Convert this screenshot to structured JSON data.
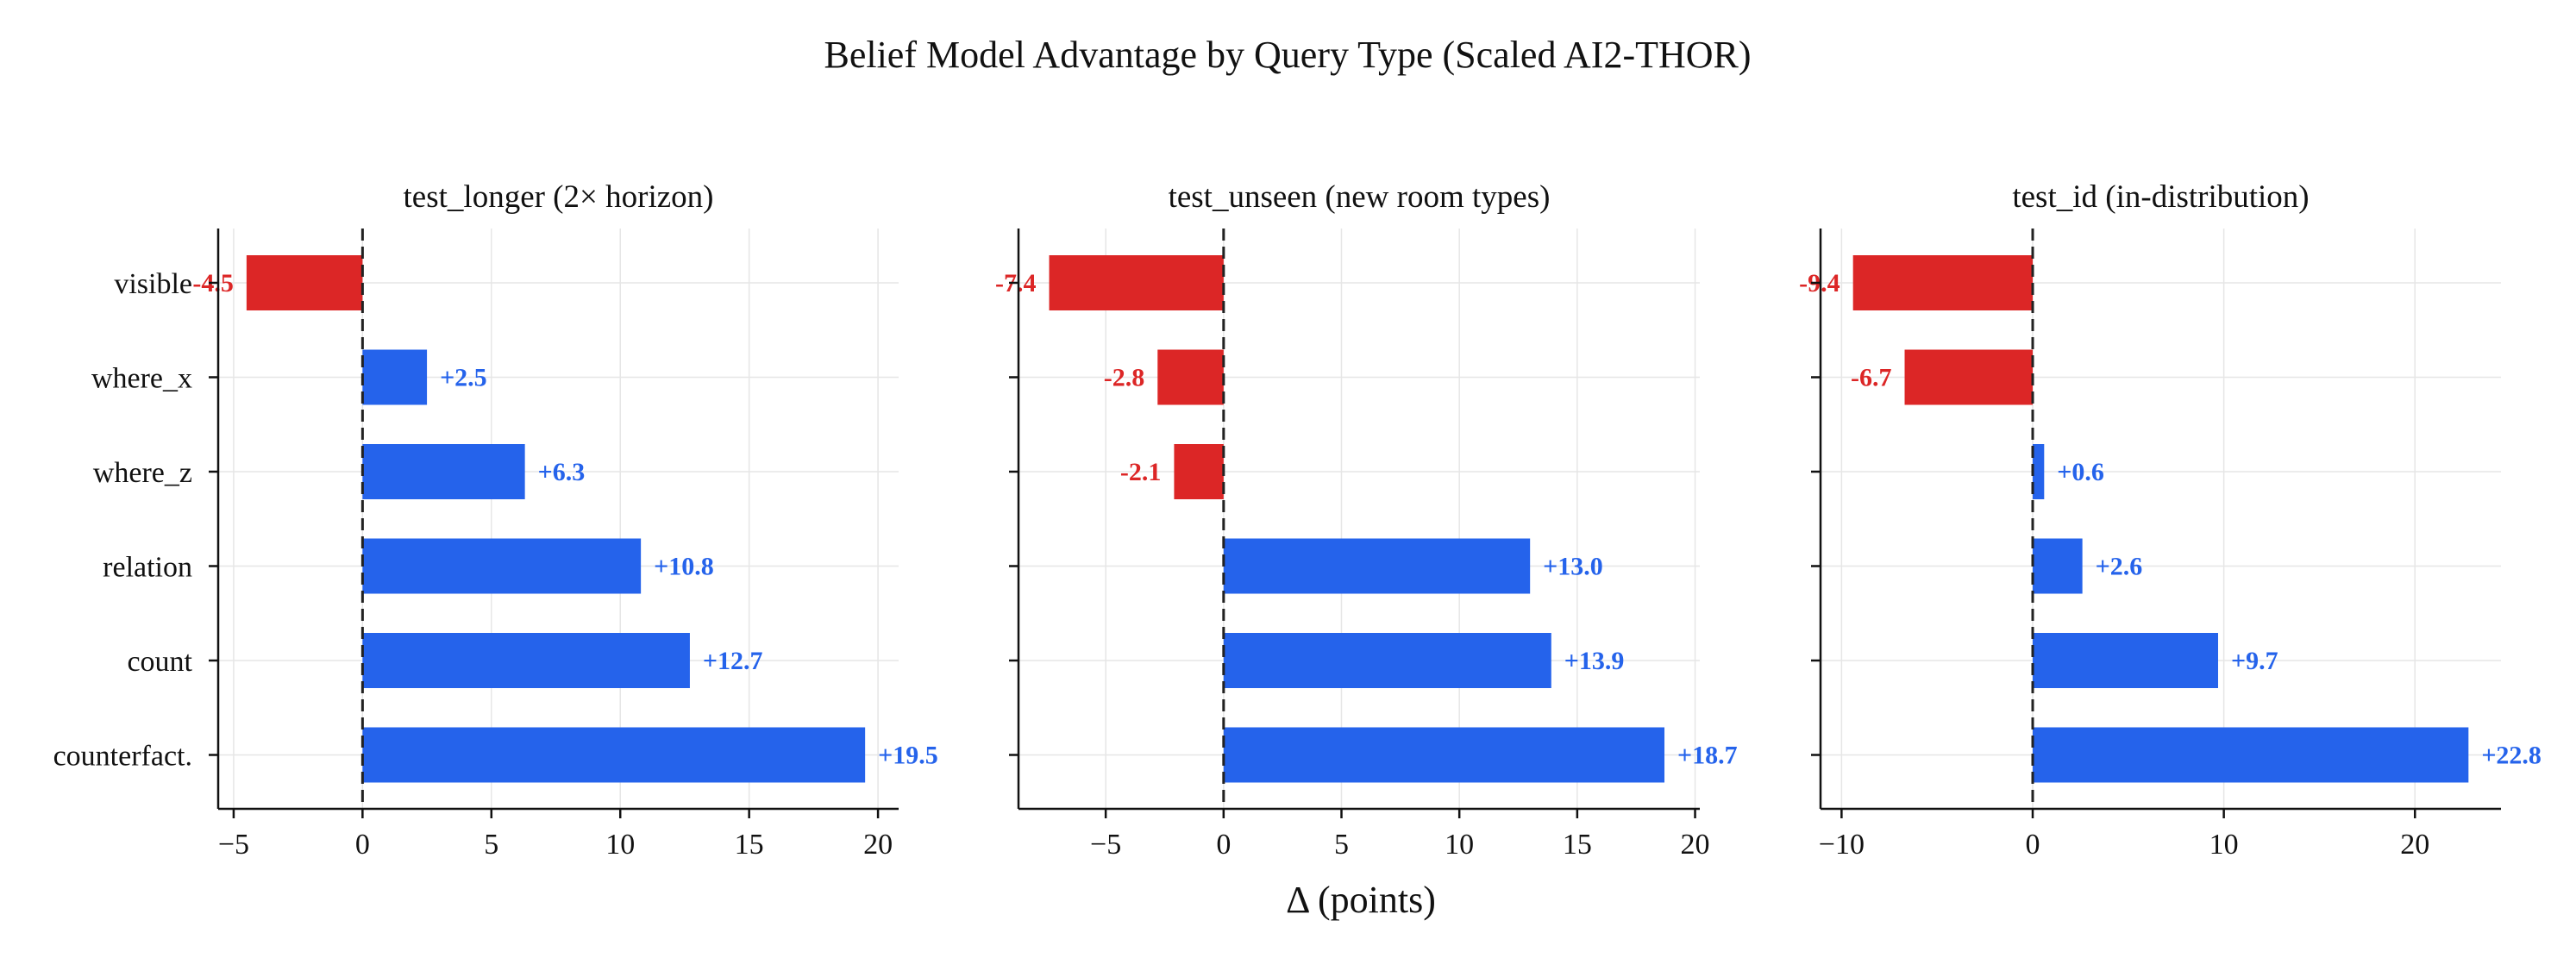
{
  "title": "Belief Model Advantage by Query Type (Scaled AI2-THOR)",
  "colors": {
    "positive": "#2563eb",
    "negative": "#dc2626"
  },
  "chart_data": [
    {
      "type": "bar",
      "orientation": "horizontal",
      "title": "test_longer (2× horizon)",
      "categories": [
        "visible",
        "where_x",
        "where_z",
        "relation",
        "count",
        "counterfact."
      ],
      "values": [
        -4.5,
        2.5,
        6.3,
        10.8,
        12.7,
        19.5
      ],
      "labels": [
        "-4.5",
        "+2.5",
        "+6.3",
        "+10.8",
        "+12.7",
        "+19.5"
      ],
      "xlim": [
        -5.6,
        20.8
      ],
      "xticks": [
        -5,
        0,
        5,
        10,
        15,
        20
      ],
      "xtick_labels": [
        "−5",
        "0",
        "5",
        "10",
        "15",
        "20"
      ],
      "grid": true
    },
    {
      "type": "bar",
      "orientation": "horizontal",
      "title": "test_unseen (new room types)",
      "categories": [
        "visible",
        "where_x",
        "where_z",
        "relation",
        "count",
        "counterfact."
      ],
      "values": [
        -7.4,
        -2.8,
        -2.1,
        13.0,
        13.9,
        18.7
      ],
      "labels": [
        "-7.4",
        "-2.8",
        "-2.1",
        "+13.0",
        "+13.9",
        "+18.7"
      ],
      "xlim": [
        -8.7,
        20.2
      ],
      "xticks": [
        -5,
        0,
        5,
        10,
        15,
        20
      ],
      "xtick_labels": [
        "−5",
        "0",
        "5",
        "10",
        "15",
        "20"
      ],
      "grid": true
    },
    {
      "type": "bar",
      "orientation": "horizontal",
      "title": "test_id (in-distribution)",
      "categories": [
        "visible",
        "where_x",
        "where_z",
        "relation",
        "count",
        "counterfact."
      ],
      "values": [
        -9.4,
        -6.7,
        0.6,
        2.6,
        9.7,
        22.8
      ],
      "labels": [
        "-9.4",
        "-6.7",
        "+0.6",
        "+2.6",
        "+9.7",
        "+22.8"
      ],
      "xlim": [
        -11.1,
        24.5
      ],
      "xticks": [
        -10,
        0,
        10,
        20
      ],
      "xtick_labels": [
        "−10",
        "0",
        "10",
        "20"
      ],
      "grid": true
    }
  ],
  "xlabel": "Δ (points)"
}
